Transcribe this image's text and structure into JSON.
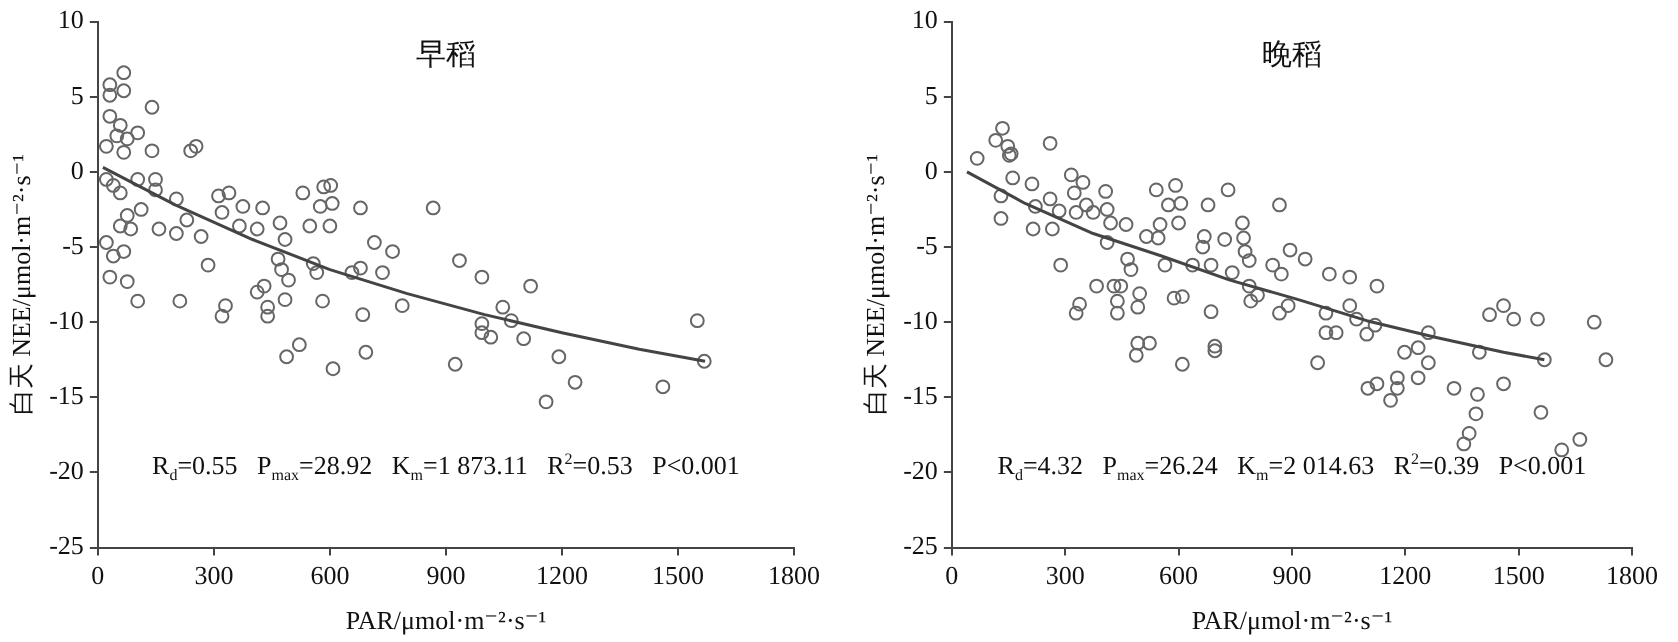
{
  "chart_data": [
    {
      "type": "scatter",
      "title": "早稻",
      "xlabel": "PAR/μmol·m⁻²·s⁻¹",
      "ylabel": "白天 NEE/μmol·m⁻²·s⁻¹",
      "annotations": [
        "R$_{d}$=0.55   P$_{max}$=28.92   K$_{m}$=1 873.11   R$^{2}$=0.53   P<0.001"
      ],
      "xlim": [
        0,
        1800
      ],
      "ylim": [
        -25,
        10
      ],
      "xticks": [
        0,
        300,
        600,
        900,
        1200,
        1500,
        1800
      ],
      "yticks": [
        -25,
        -20,
        -15,
        -10,
        -5,
        0,
        5,
        10
      ],
      "grid": false,
      "series": [
        {
          "marker": "circle",
          "color": "#666666",
          "x": [
            31,
            67,
            67,
            31,
            31,
            58,
            140,
            22,
            49,
            76,
            103,
            67,
            140,
            240,
            254,
            22,
            40,
            58,
            103,
            149,
            149,
            112,
            76,
            58,
            85,
            22,
            40,
            67,
            31,
            76,
            103,
            203,
            230,
            158,
            203,
            267,
            212,
            285,
            312,
            339,
            321,
            375,
            366,
            412,
            426,
            471,
            412,
            430,
            321,
            330,
            439,
            439,
            466,
            475,
            484,
            484,
            493,
            530,
            548,
            557,
            566,
            575,
            584,
            602,
            606,
            600,
            581,
            521,
            488,
            608,
            657,
            679,
            679,
            685,
            693,
            715,
            736,
            762,
            787,
            867,
            935,
            993,
            993,
            993,
            1016,
            924,
            1047,
            1069,
            1101,
            1119,
            1159,
            1192,
            1234,
            1461,
            1550,
            1568
          ],
          "values": [
            5.8,
            6.6,
            5.4,
            5.1,
            3.7,
            3.1,
            4.3,
            1.7,
            2.4,
            2.2,
            2.6,
            1.3,
            1.4,
            1.4,
            1.7,
            -0.5,
            -0.9,
            -1.4,
            -0.5,
            -0.5,
            -1.2,
            -2.5,
            -2.9,
            -3.6,
            -3.8,
            -4.7,
            -5.6,
            -5.3,
            -7.0,
            -7.3,
            -8.6,
            -1.8,
            -3.2,
            -3.8,
            -4.1,
            -4.3,
            -8.6,
            -6.2,
            -1.6,
            -1.4,
            -2.7,
            -2.3,
            -3.6,
            -3.8,
            -2.4,
            -3.4,
            -8.0,
            -7.6,
            -9.6,
            -8.9,
            -9.0,
            -9.6,
            -5.8,
            -6.5,
            -4.5,
            -8.5,
            -7.2,
            -1.4,
            -3.6,
            -6.1,
            -6.7,
            -2.3,
            -1.0,
            -0.9,
            -2.1,
            -3.6,
            -8.6,
            -11.5,
            -12.3,
            -13.1,
            -6.7,
            -2.4,
            -6.4,
            -9.5,
            -12.0,
            -4.7,
            -6.7,
            -5.3,
            -8.9,
            -2.4,
            -5.9,
            -7.0,
            -10.1,
            -10.7,
            -11.0,
            -12.8,
            -9.0,
            -9.9,
            -11.1,
            -7.6,
            -15.3,
            -12.3,
            -14.0,
            -14.3,
            -9.9,
            -12.6
          ]
        },
        {
          "type": "line",
          "color": "#444444",
          "line_style": "solid",
          "x": [
            13,
            200,
            400,
            600,
            800,
            1000,
            1200,
            1400,
            1570
          ],
          "values": [
            0.3,
            -2.2,
            -4.5,
            -6.5,
            -8.1,
            -9.5,
            -10.7,
            -11.8,
            -12.6
          ]
        }
      ]
    },
    {
      "type": "scatter",
      "title": "晚稻",
      "xlabel": "PAR/μmol·m⁻²·s⁻¹",
      "ylabel": "白天 NEE/μmol·m⁻²·s⁻¹",
      "annotations": [
        "R$_{d}$=4.32   P$_{max}$=26.24   K$_{m}$=2 014.63   R$^{2}$=0.39   P<0.001"
      ],
      "xlim": [
        0,
        1800
      ],
      "ylim": [
        -25,
        10
      ],
      "xticks": [
        0,
        300,
        600,
        900,
        1200,
        1500,
        1800
      ],
      "yticks": [
        -25,
        -20,
        -15,
        -10,
        -5,
        0,
        5,
        10
      ],
      "grid": false,
      "series": [
        {
          "marker": "circle",
          "color": "#666666",
          "x": [
            67,
            116,
            134,
            148,
            152,
            157,
            161,
            130,
            130,
            212,
            221,
            215,
            260,
            260,
            266,
            284,
            288,
            316,
            324,
            329,
            347,
            356,
            374,
            329,
            338,
            407,
            411,
            420,
            411,
            383,
            429,
            447,
            438,
            438,
            461,
            465,
            474,
            492,
            497,
            492,
            523,
            488,
            515,
            541,
            546,
            551,
            564,
            573,
            592,
            606,
            600,
            588,
            610,
            610,
            637,
            664,
            668,
            678,
            686,
            686,
            696,
            696,
            722,
            731,
            742,
            769,
            772,
            776,
            787,
            787,
            791,
            809,
            849,
            867,
            872,
            867,
            890,
            895,
            935,
            968,
            990,
            990,
            999,
            1017,
            1053,
            1053,
            1071,
            1098,
            1101,
            1125,
            1125,
            1120,
            1161,
            1179,
            1179,
            1198,
            1234,
            1234,
            1261,
            1261,
            1329,
            1355,
            1369,
            1387,
            1391,
            1396,
            1423,
            1460,
            1460,
            1487,
            1550,
            1559,
            1568,
            1614,
            1662,
            1700,
            1731
          ],
          "values": [
            0.9,
            2.1,
            2.9,
            1.7,
            1.1,
            1.2,
            -0.4,
            -1.6,
            -3.1,
            -0.8,
            -2.3,
            -3.8,
            1.9,
            -1.8,
            -3.8,
            -2.6,
            -6.2,
            -0.2,
            -1.4,
            -2.7,
            -0.7,
            -2.2,
            -2.7,
            -9.4,
            -8.8,
            -1.3,
            -2.5,
            -3.4,
            -4.7,
            -7.6,
            -7.6,
            -7.6,
            -8.6,
            -9.4,
            -3.5,
            -5.8,
            -6.5,
            -9.0,
            -8.1,
            -11.4,
            -11.4,
            -12.2,
            -4.3,
            -1.2,
            -4.4,
            -3.5,
            -6.2,
            -2.2,
            -0.9,
            -2.1,
            -3.4,
            -8.4,
            -8.3,
            -12.8,
            -6.2,
            -5.0,
            -4.3,
            -2.2,
            -6.2,
            -9.3,
            -11.6,
            -11.9,
            -4.5,
            -1.2,
            -6.7,
            -3.4,
            -4.4,
            -5.3,
            -5.9,
            -7.6,
            -8.6,
            -8.2,
            -6.2,
            -2.2,
            -6.8,
            -9.4,
            -8.9,
            -5.2,
            -5.8,
            -12.7,
            -9.4,
            -10.7,
            -6.8,
            -10.7,
            -7.0,
            -8.9,
            -9.8,
            -10.8,
            -14.4,
            -14.1,
            -7.6,
            -10.2,
            -15.2,
            -14.4,
            -13.7,
            -12.0,
            -11.7,
            -13.7,
            -10.7,
            -12.7,
            -14.4,
            -18.1,
            -17.4,
            -16.1,
            -14.8,
            -12.0,
            -9.5,
            -8.9,
            -14.1,
            -9.8,
            -9.8,
            -16.0,
            -12.5,
            -18.5,
            -17.8,
            -10.0,
            -12.5
          ]
        },
        {
          "type": "line",
          "color": "#444444",
          "line_style": "solid",
          "x": [
            40,
            194,
            374,
            555,
            736,
            917,
            1098,
            1279,
            1460,
            1568
          ],
          "values": [
            0,
            -2.1,
            -4.1,
            -5.6,
            -7.2,
            -8.5,
            -9.9,
            -11.0,
            -12.0,
            -12.5
          ]
        }
      ]
    }
  ]
}
